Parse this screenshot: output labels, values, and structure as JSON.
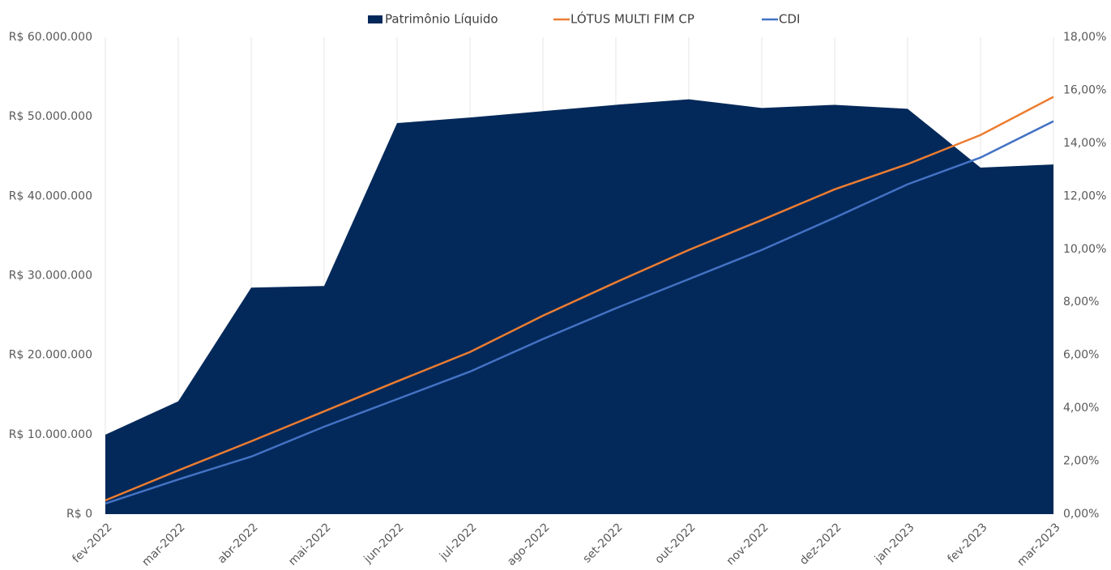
{
  "chart_data": {
    "type": "combo",
    "categories": [
      "fev-2022",
      "mar-2022",
      "abr-2022",
      "mai-2022",
      "jun-2022",
      "jul-2022",
      "ago-2022",
      "set-2022",
      "out-2022",
      "nov-2022",
      "dez-2022",
      "jan-2023",
      "fev-2023",
      "mar-2023"
    ],
    "series": [
      {
        "name": "Patrimônio Líquido",
        "type": "area",
        "color": "#03295a",
        "values": [
          10000000,
          14200000,
          28500000,
          28700000,
          49200000,
          49900000,
          50700000,
          51500000,
          52200000,
          51100000,
          51500000,
          51000000,
          43600000,
          44000000
        ]
      },
      {
        "name": "LÓTUS MULTI FIM CP",
        "type": "line",
        "axis": "y2",
        "color": "#ed7d31",
        "values": [
          0.52,
          1.65,
          2.75,
          3.88,
          5.01,
          6.12,
          7.49,
          8.75,
          9.97,
          11.1,
          12.26,
          13.21,
          14.31,
          15.75
        ]
      },
      {
        "name": "CDI",
        "type": "line",
        "axis": "y2",
        "color": "#4472c4",
        "values": [
          0.4,
          1.31,
          2.17,
          3.3,
          4.34,
          5.38,
          6.61,
          7.77,
          8.87,
          9.97,
          11.19,
          12.45,
          13.46,
          14.83
        ]
      }
    ],
    "ylim": [
      0,
      60000000
    ],
    "yticks": [
      {
        "value": 0,
        "label": "R$ 0"
      },
      {
        "value": 10000000,
        "label": "R$ 10.000.000"
      },
      {
        "value": 20000000,
        "label": "R$ 20.000.000"
      },
      {
        "value": 30000000,
        "label": "R$ 30.000.000"
      },
      {
        "value": 40000000,
        "label": "R$ 40.000.000"
      },
      {
        "value": 50000000,
        "label": "R$ 50.000.000"
      },
      {
        "value": 60000000,
        "label": "R$ 60.000.000"
      }
    ],
    "y2lim": [
      0,
      18
    ],
    "y2ticks": [
      {
        "value": 0,
        "label": "0,00%"
      },
      {
        "value": 2,
        "label": "2,00%"
      },
      {
        "value": 4,
        "label": "4,00%"
      },
      {
        "value": 6,
        "label": "6,00%"
      },
      {
        "value": 8,
        "label": "8,00%"
      },
      {
        "value": 10,
        "label": "10,00%"
      },
      {
        "value": 12,
        "label": "12,00%"
      },
      {
        "value": 14,
        "label": "14,00%"
      },
      {
        "value": 16,
        "label": "16,00%"
      },
      {
        "value": 18,
        "label": "18,00%"
      }
    ],
    "grid": true,
    "legend": "top"
  }
}
